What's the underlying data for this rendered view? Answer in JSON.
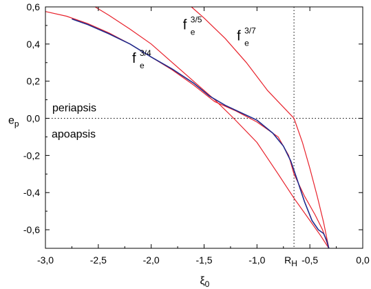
{
  "chart_data": {
    "type": "line",
    "xlabel": {
      "base": "ξ",
      "sub": "0"
    },
    "ylabel": {
      "base": "e",
      "sub": "p"
    },
    "xlim": [
      -3.0,
      0.0
    ],
    "ylim": [
      -0.7,
      0.6
    ],
    "x_ticks": [
      {
        "value": -3.0,
        "label": "-3,0"
      },
      {
        "value": -2.5,
        "label": "-2,5"
      },
      {
        "value": -2.0,
        "label": "-2,0"
      },
      {
        "value": -1.5,
        "label": "-1,5"
      },
      {
        "value": -1.0,
        "label": "-1,0"
      },
      {
        "value": -0.5,
        "label": "-0,5"
      },
      {
        "value": 0.0,
        "label": "0,0"
      }
    ],
    "y_ticks": [
      {
        "value": 0.6,
        "label": "0,6"
      },
      {
        "value": 0.4,
        "label": "0,4"
      },
      {
        "value": 0.2,
        "label": "0,2"
      },
      {
        "value": 0.0,
        "label": "0,0"
      },
      {
        "value": -0.2,
        "label": "-0,2"
      },
      {
        "value": -0.4,
        "label": "-0,4"
      },
      {
        "value": -0.6,
        "label": "-0,6"
      }
    ],
    "region_labels": {
      "upper": "periapsis",
      "lower": "apoapsis"
    },
    "reference_lines": {
      "horizontal": {
        "y": 0.0,
        "style": "dotted"
      },
      "vertical": {
        "x": -0.65,
        "label": {
          "base": "R",
          "sub": "H"
        },
        "style": "dotted"
      }
    },
    "series": [
      {
        "name": {
          "base": "f",
          "sub": "e",
          "sup": "3/4"
        },
        "color": "#e8202a",
        "points": [
          [
            -2.53,
            0.6
          ],
          [
            -2.4,
            0.555
          ],
          [
            -2.2,
            0.48
          ],
          [
            -2.0,
            0.4
          ],
          [
            -1.8,
            0.3
          ],
          [
            -1.6,
            0.2
          ],
          [
            -1.4,
            0.1
          ],
          [
            -1.22,
            0.0
          ],
          [
            -1.0,
            -0.13
          ],
          [
            -0.8,
            -0.3
          ],
          [
            -0.65,
            -0.43
          ],
          [
            -0.5,
            -0.55
          ],
          [
            -0.4,
            -0.63
          ],
          [
            -0.32,
            -0.7
          ]
        ]
      },
      {
        "name": {
          "base": "f",
          "sub": "e",
          "sup": "3/5"
        },
        "color": "#e8202a",
        "points": [
          [
            -3.0,
            0.575
          ],
          [
            -2.8,
            0.55
          ],
          [
            -2.6,
            0.51
          ],
          [
            -2.4,
            0.46
          ],
          [
            -2.2,
            0.4
          ],
          [
            -2.0,
            0.33
          ],
          [
            -1.8,
            0.26
          ],
          [
            -1.6,
            0.18
          ],
          [
            -1.4,
            0.09
          ],
          [
            -1.2,
            0.04
          ],
          [
            -1.0,
            -0.02
          ],
          [
            -0.8,
            -0.1
          ],
          [
            -0.7,
            -0.2
          ],
          [
            -0.65,
            -0.3
          ],
          [
            -0.55,
            -0.42
          ],
          [
            -0.45,
            -0.52
          ],
          [
            -0.38,
            -0.6
          ],
          [
            -0.32,
            -0.7
          ]
        ]
      },
      {
        "name": {
          "base": "f",
          "sub": "e",
          "sup": "3/7"
        },
        "color": "#e8202a",
        "points": [
          [
            -1.62,
            0.6
          ],
          [
            -1.5,
            0.54
          ],
          [
            -1.3,
            0.43
          ],
          [
            -1.1,
            0.3
          ],
          [
            -0.9,
            0.15
          ],
          [
            -0.75,
            0.06
          ],
          [
            -0.65,
            0.0
          ],
          [
            -0.57,
            -0.13
          ],
          [
            -0.5,
            -0.27
          ],
          [
            -0.43,
            -0.42
          ],
          [
            -0.37,
            -0.56
          ],
          [
            -0.32,
            -0.7
          ]
        ]
      },
      {
        "name": "",
        "color": "#1f2a8c",
        "points": [
          [
            -2.75,
            0.535
          ],
          [
            -2.6,
            0.505
          ],
          [
            -2.4,
            0.455
          ],
          [
            -2.2,
            0.4
          ],
          [
            -2.0,
            0.33
          ],
          [
            -1.8,
            0.265
          ],
          [
            -1.6,
            0.19
          ],
          [
            -1.45,
            0.12
          ],
          [
            -1.3,
            0.07
          ],
          [
            -1.15,
            0.03
          ],
          [
            -1.0,
            -0.01
          ],
          [
            -0.85,
            -0.08
          ],
          [
            -0.75,
            -0.15
          ],
          [
            -0.68,
            -0.23
          ],
          [
            -0.62,
            -0.33
          ],
          [
            -0.55,
            -0.45
          ],
          [
            -0.48,
            -0.55
          ],
          [
            -0.42,
            -0.6
          ],
          [
            -0.37,
            -0.62
          ],
          [
            -0.34,
            -0.66
          ],
          [
            -0.32,
            -0.7
          ]
        ]
      }
    ],
    "curve_labels": [
      {
        "series": 0,
        "x": -2.18,
        "y": 0.3
      },
      {
        "series": 1,
        "x": -1.7,
        "y": 0.48
      },
      {
        "series": 2,
        "x": -1.19,
        "y": 0.42
      }
    ]
  }
}
